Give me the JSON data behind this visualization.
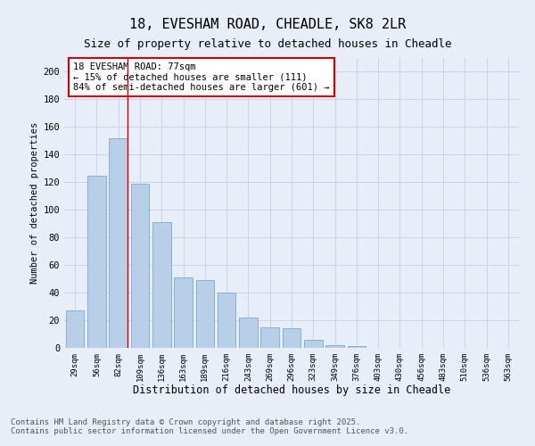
{
  "title1": "18, EVESHAM ROAD, CHEADLE, SK8 2LR",
  "title2": "Size of property relative to detached houses in Cheadle",
  "xlabel": "Distribution of detached houses by size in Cheadle",
  "ylabel": "Number of detached properties",
  "categories": [
    "29sqm",
    "56sqm",
    "82sqm",
    "109sqm",
    "136sqm",
    "163sqm",
    "189sqm",
    "216sqm",
    "243sqm",
    "269sqm",
    "296sqm",
    "323sqm",
    "349sqm",
    "376sqm",
    "403sqm",
    "430sqm",
    "456sqm",
    "483sqm",
    "510sqm",
    "536sqm",
    "563sqm"
  ],
  "values": [
    27,
    125,
    152,
    119,
    91,
    51,
    49,
    40,
    22,
    15,
    14,
    6,
    2,
    1,
    0,
    0,
    0,
    0,
    0,
    0,
    0
  ],
  "bar_color": "#b8cfe8",
  "bar_edge_color": "#7aaad0",
  "vline_color": "#cc0000",
  "vline_x_index": 2,
  "annotation_text": "18 EVESHAM ROAD: 77sqm\n← 15% of detached houses are smaller (111)\n84% of semi-detached houses are larger (601) →",
  "annotation_box_color": "#ffffff",
  "annotation_box_edge": "#cc0000",
  "ylim": [
    0,
    210
  ],
  "yticks": [
    0,
    20,
    40,
    60,
    80,
    100,
    120,
    140,
    160,
    180,
    200
  ],
  "grid_color": "#c8d4e8",
  "bg_color": "#e8eef8",
  "footer1": "Contains HM Land Registry data © Crown copyright and database right 2025.",
  "footer2": "Contains public sector information licensed under the Open Government Licence v3.0."
}
